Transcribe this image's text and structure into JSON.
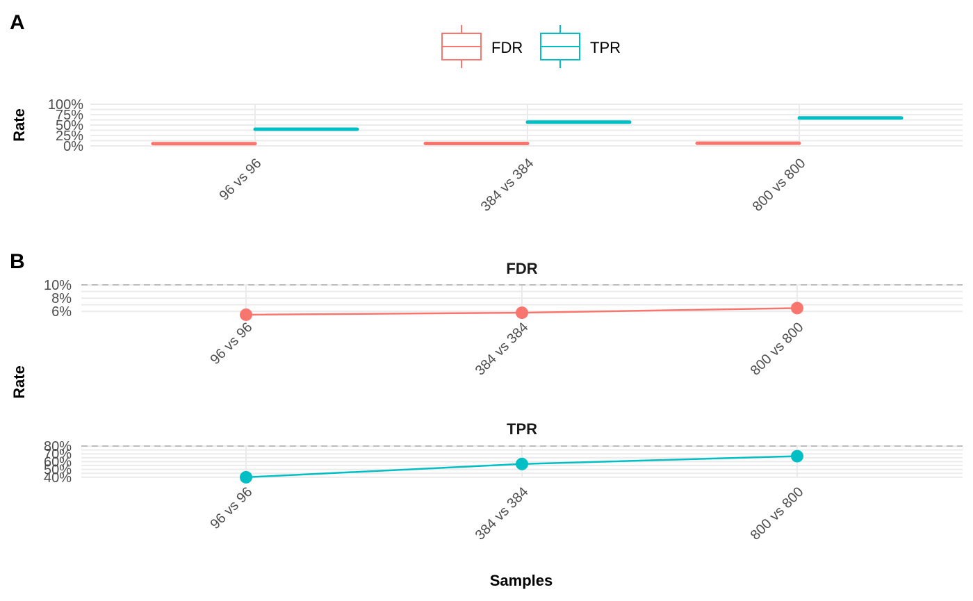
{
  "panels": {
    "a_label": "A",
    "b_label": "B"
  },
  "colors": {
    "FDR": "#F8766D",
    "TPR": "#00BFC4"
  },
  "chart_data": [
    {
      "type": "bar",
      "panel": "A",
      "ylabel": "Rate",
      "categories": [
        "96 vs 96",
        "384 vs 384",
        "800 vs 800"
      ],
      "y_ticks": [
        "0%",
        "25%",
        "50%",
        "75%",
        "100%"
      ],
      "ylim": [
        0,
        100
      ],
      "legend": {
        "position": "top",
        "entries": [
          "FDR",
          "TPR"
        ]
      },
      "series": [
        {
          "name": "FDR",
          "values": [
            5.5,
            5.8,
            6.5
          ]
        },
        {
          "name": "TPR",
          "values": [
            40,
            57,
            67
          ]
        }
      ],
      "grid": true
    },
    {
      "type": "line",
      "panel": "B",
      "title": "FDR",
      "ylabel": "Rate",
      "categories": [
        "96 vs 96",
        "384 vs 384",
        "800 vs 800"
      ],
      "y_ticks": [
        "6%",
        "8%",
        "10%"
      ],
      "ylim": [
        5.6,
        10
      ],
      "reference_line": 10,
      "series": [
        {
          "name": "FDR",
          "values": [
            5.5,
            5.8,
            6.5
          ]
        }
      ],
      "grid": true
    },
    {
      "type": "line",
      "panel": "B",
      "title": "TPR",
      "xlabel": "Samples",
      "ylabel": "Rate",
      "categories": [
        "96 vs 96",
        "384 vs 384",
        "800 vs 800"
      ],
      "y_ticks": [
        "40%",
        "50%",
        "60%",
        "70%",
        "80%"
      ],
      "ylim": [
        39,
        80
      ],
      "reference_line": 80,
      "series": [
        {
          "name": "TPR",
          "values": [
            40,
            57,
            67
          ]
        }
      ],
      "grid": true
    }
  ]
}
